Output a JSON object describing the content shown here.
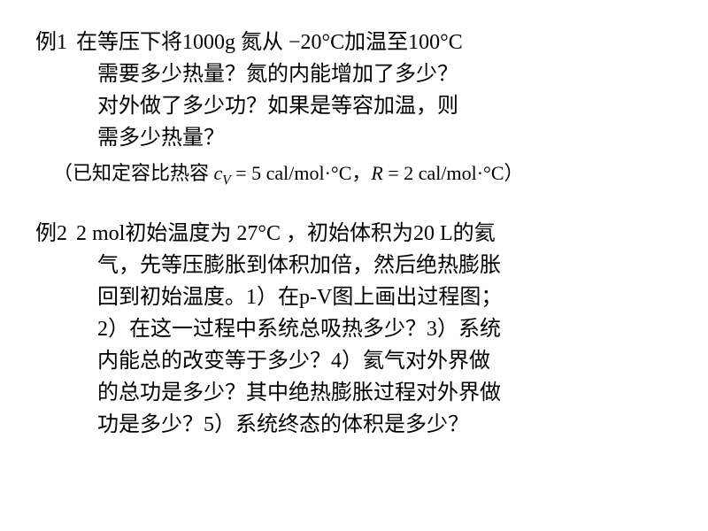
{
  "example1": {
    "label": "例1",
    "line1_part1": "在等压下将1000g 氮从",
    "line1_temp1": " −20°C",
    "line1_part2": "加温至",
    "line1_temp2": "100°C",
    "line2": "需要多少热量？氮的内能增加了多少？",
    "line3": "对外做了多少功？如果是等容加温，则",
    "line4": "需多少热量？",
    "note_prefix": "（已知定容比热容",
    "note_cv_var": " c",
    "note_cv_sub": "V",
    "note_cv_eq": " = 5 cal/mol·°C",
    "note_sep": "，",
    "note_r_var": "R",
    "note_r_eq": " = 2 cal/mol·°C",
    "note_suffix": "）"
  },
  "example2": {
    "label": "例2",
    "line1_part1": "2 mol初始温度为",
    "line1_temp": " 27°C ",
    "line1_part2": "，初始体积为20 L的氦",
    "line2": "气，先等压膨胀到体积加倍，然后绝热膨胀",
    "line3": "回到初始温度。1）在p-V图上画出过程图；",
    "line4": "2）在这一过程中系统总吸热多少？3）系统",
    "line5": "内能总的改变等于多少？4）氦气对外界做",
    "line6": "的总功是多少？其中绝热膨胀过程对外界做",
    "line7": "功是多少？5）系统终态的体积是多少？"
  }
}
